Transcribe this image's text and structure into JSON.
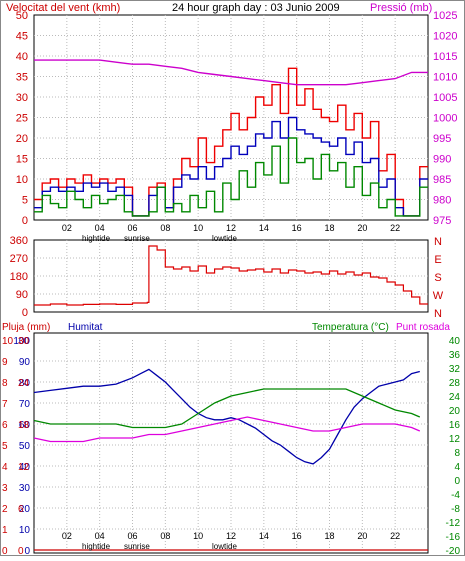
{
  "header": {
    "wind_label": "Velocitat del vent (kmh)",
    "title": "24 hour graph day : 03 Junio 2009",
    "pressure_label": "Pressió (mb)"
  },
  "markers": {
    "hightide": "hightide",
    "sunrise": "sunrise",
    "lowtide": "lowtide"
  },
  "colors": {
    "wind": "#ee0000",
    "gust": "#ee0000",
    "avg": "#0000bb",
    "gust2": "#008800",
    "pressure": "#cc00cc",
    "direction": "#dd0000",
    "humidity": "#0000aa",
    "temperature": "#008800",
    "dewpoint": "#dd00dd",
    "rain": "#cc0000"
  },
  "chart_data": [
    {
      "type": "line",
      "title": "24 hour graph day : 03 Junio 2009",
      "ylabel": "Velocitat del vent (kmh)",
      "y2label": "Pressió (mb)",
      "xticks": [
        "02",
        "04",
        "06",
        "08",
        "10",
        "12",
        "14",
        "16",
        "18",
        "20",
        "22"
      ],
      "yticks": [
        "0",
        "5",
        "10",
        "15",
        "20",
        "25",
        "30",
        "35",
        "40",
        "45",
        "50"
      ],
      "y2ticks": [
        "975",
        "980",
        "985",
        "990",
        "995",
        "1000",
        "1005",
        "1010",
        "1015",
        "1020",
        "1025"
      ],
      "ylim": [
        0,
        50
      ],
      "y2lim": [
        975,
        1025
      ],
      "xlim": [
        0,
        24
      ],
      "series": [
        {
          "name": "gust",
          "x": [
            0,
            0.5,
            1,
            1.5,
            2,
            2.5,
            3,
            3.5,
            4,
            4.5,
            5,
            5.5,
            6,
            6.5,
            7,
            7.5,
            8,
            8.5,
            9,
            9.5,
            10,
            10.5,
            11,
            11.5,
            12,
            12.5,
            13,
            13.5,
            14,
            14.5,
            15,
            15.5,
            16,
            16.5,
            17,
            17.5,
            18,
            18.5,
            19,
            19.5,
            20,
            20.5,
            21,
            21.5,
            22,
            22.5,
            23,
            23.5
          ],
          "values": [
            5,
            9,
            10,
            8,
            10,
            9,
            11,
            9,
            10,
            9,
            10,
            8,
            1,
            1,
            8,
            9,
            3,
            10,
            15,
            13,
            20,
            14,
            18,
            22,
            26,
            22,
            25,
            30,
            28,
            33,
            26,
            37,
            28,
            32,
            27,
            25,
            24,
            28,
            22,
            26,
            20,
            24,
            12,
            16,
            5,
            1,
            1,
            13
          ]
        },
        {
          "name": "average",
          "x": [
            0,
            0.5,
            1,
            1.5,
            2,
            2.5,
            3,
            3.5,
            4,
            4.5,
            5,
            5.5,
            6,
            6.5,
            7,
            7.5,
            8,
            8.5,
            9,
            9.5,
            10,
            10.5,
            11,
            11.5,
            12,
            12.5,
            13,
            13.5,
            14,
            14.5,
            15,
            15.5,
            16,
            16.5,
            17,
            17.5,
            18,
            18.5,
            19,
            19.5,
            20,
            20.5,
            21,
            21.5,
            22,
            22.5,
            23,
            23.5
          ],
          "values": [
            3,
            7,
            8,
            7,
            8,
            7,
            9,
            8,
            9,
            7,
            8,
            6,
            1,
            1,
            6,
            8,
            3,
            8,
            11,
            10,
            13,
            10,
            13,
            15,
            18,
            16,
            18,
            21,
            20,
            24,
            20,
            25,
            22,
            21,
            20,
            19,
            18,
            20,
            16,
            19,
            14,
            15,
            8,
            10,
            3,
            1,
            1,
            10
          ]
        },
        {
          "name": "gust2",
          "x": [
            0,
            0.5,
            1,
            1.5,
            2,
            2.5,
            3,
            3.5,
            4,
            4.5,
            5,
            5.5,
            6,
            6.5,
            7,
            7.5,
            8,
            8.5,
            9,
            9.5,
            10,
            10.5,
            11,
            11.5,
            12,
            12.5,
            13,
            13.5,
            14,
            14.5,
            15,
            15.5,
            16,
            16.5,
            17,
            17.5,
            18,
            18.5,
            19,
            19.5,
            20,
            20.5,
            21,
            21.5,
            22,
            22.5,
            23,
            23.5
          ],
          "values": [
            2,
            6,
            4,
            3,
            7,
            5,
            3,
            6,
            4,
            5,
            6,
            2,
            1,
            1,
            2,
            8,
            2,
            4,
            2,
            6,
            3,
            7,
            2,
            9,
            5,
            12,
            8,
            14,
            11,
            18,
            9,
            20,
            14,
            15,
            10,
            16,
            12,
            14,
            8,
            13,
            6,
            9,
            3,
            5,
            1,
            1,
            1,
            8
          ]
        },
        {
          "name": "pressure",
          "x": [
            0,
            1,
            2,
            3,
            4,
            5,
            6,
            7,
            8,
            9,
            10,
            11,
            12,
            13,
            14,
            15,
            16,
            17,
            18,
            19,
            20,
            21,
            22,
            23,
            24
          ],
          "values": [
            1014,
            1014,
            1014,
            1014,
            1014,
            1013.5,
            1013,
            1013,
            1012.5,
            1012,
            1011,
            1010.5,
            1010,
            1009.5,
            1009,
            1008.5,
            1008,
            1008,
            1008,
            1008,
            1008.5,
            1009,
            1009.5,
            1011,
            1011
          ]
        }
      ]
    },
    {
      "type": "line",
      "yticks": [
        "0",
        "90",
        "180",
        "270",
        "360"
      ],
      "y2ticks": [
        "N",
        "W",
        "S",
        "E",
        "N"
      ],
      "ylim": [
        0,
        360
      ],
      "series": [
        {
          "name": "direction",
          "x": [
            0,
            1,
            2,
            3,
            4,
            5,
            6,
            6.9,
            7,
            7.5,
            8,
            8.5,
            9,
            9.5,
            10,
            10.5,
            11,
            11.5,
            12,
            12.5,
            13,
            13.5,
            14,
            14.5,
            15,
            15.5,
            16,
            16.5,
            17,
            17.5,
            18,
            18.5,
            19,
            19.5,
            20,
            20.5,
            21,
            21.5,
            22,
            22.5,
            23,
            23.5
          ],
          "values": [
            35,
            40,
            35,
            38,
            40,
            38,
            45,
            48,
            330,
            310,
            225,
            215,
            225,
            205,
            230,
            195,
            215,
            225,
            220,
            205,
            210,
            215,
            200,
            215,
            195,
            210,
            205,
            195,
            200,
            190,
            205,
            190,
            200,
            185,
            195,
            175,
            170,
            150,
            135,
            105,
            75,
            40
          ]
        }
      ]
    },
    {
      "type": "line",
      "legend": [
        "Pluja (mm)",
        "Humitat",
        "Temperatura (°C)",
        "Punt rosada"
      ],
      "xticks": [
        "02",
        "04",
        "06",
        "08",
        "10",
        "12",
        "14",
        "16",
        "18",
        "20",
        "22"
      ],
      "y_left_outer": [
        "0",
        "1",
        "2",
        "3",
        "4",
        "5",
        "6",
        "7",
        "8",
        "9",
        "10"
      ],
      "y_left_inner": [
        "0",
        "6",
        "12",
        "18",
        "24",
        "30"
      ],
      "y_left_pct": [
        "0",
        "10",
        "20",
        "30",
        "40",
        "50",
        "60",
        "70",
        "80",
        "90",
        "100"
      ],
      "y_right": [
        "-20",
        "-16",
        "-12",
        "-8",
        "-4",
        "0",
        "4",
        "8",
        "12",
        "16",
        "20",
        "24",
        "28",
        "32",
        "36",
        "40"
      ],
      "series": [
        {
          "name": "Humitat",
          "x": [
            0,
            1,
            2,
            3,
            4,
            5,
            6,
            6.5,
            7,
            7.5,
            8,
            8.5,
            9,
            9.5,
            10,
            10.5,
            11,
            11.5,
            12,
            12.5,
            13,
            13.5,
            14,
            14.5,
            15,
            15.5,
            16,
            16.5,
            17,
            17.5,
            18,
            18.5,
            19,
            19.5,
            20,
            20.5,
            21,
            21.5,
            22,
            22.5,
            23,
            23.5
          ],
          "values": [
            75,
            76,
            77,
            78,
            78,
            79,
            82,
            84,
            86,
            83,
            80,
            76,
            72,
            68,
            65,
            63,
            62,
            62,
            63,
            62,
            60,
            58,
            55,
            52,
            50,
            47,
            44,
            42,
            41,
            44,
            48,
            55,
            62,
            68,
            72,
            75,
            78,
            79,
            80,
            81,
            84,
            85
          ]
        },
        {
          "name": "Temperatura",
          "x": [
            0,
            1,
            2,
            3,
            4,
            5,
            6,
            7,
            8,
            9,
            10,
            11,
            12,
            13,
            14,
            15,
            16,
            17,
            18,
            19,
            20,
            21,
            22,
            23,
            23.5
          ],
          "values": [
            17,
            16,
            16,
            16,
            16,
            16,
            15,
            15,
            15,
            16,
            19,
            22,
            24,
            25,
            26,
            26,
            26,
            26,
            26,
            26,
            24,
            22,
            20,
            19,
            18
          ]
        },
        {
          "name": "Punt rosada",
          "x": [
            0,
            1,
            2,
            3,
            4,
            5,
            6,
            7,
            8,
            9,
            10,
            11,
            12,
            13,
            14,
            15,
            16,
            17,
            18,
            19,
            20,
            21,
            22,
            23,
            23.5
          ],
          "values": [
            12,
            11,
            11,
            11,
            12,
            12,
            12,
            13,
            13,
            14,
            15,
            16,
            17,
            18,
            17,
            16,
            15,
            14,
            14,
            15,
            16,
            16,
            16,
            15,
            14
          ]
        },
        {
          "name": "Pluja",
          "x": [
            0,
            24
          ],
          "values": [
            0,
            0
          ]
        }
      ]
    }
  ]
}
